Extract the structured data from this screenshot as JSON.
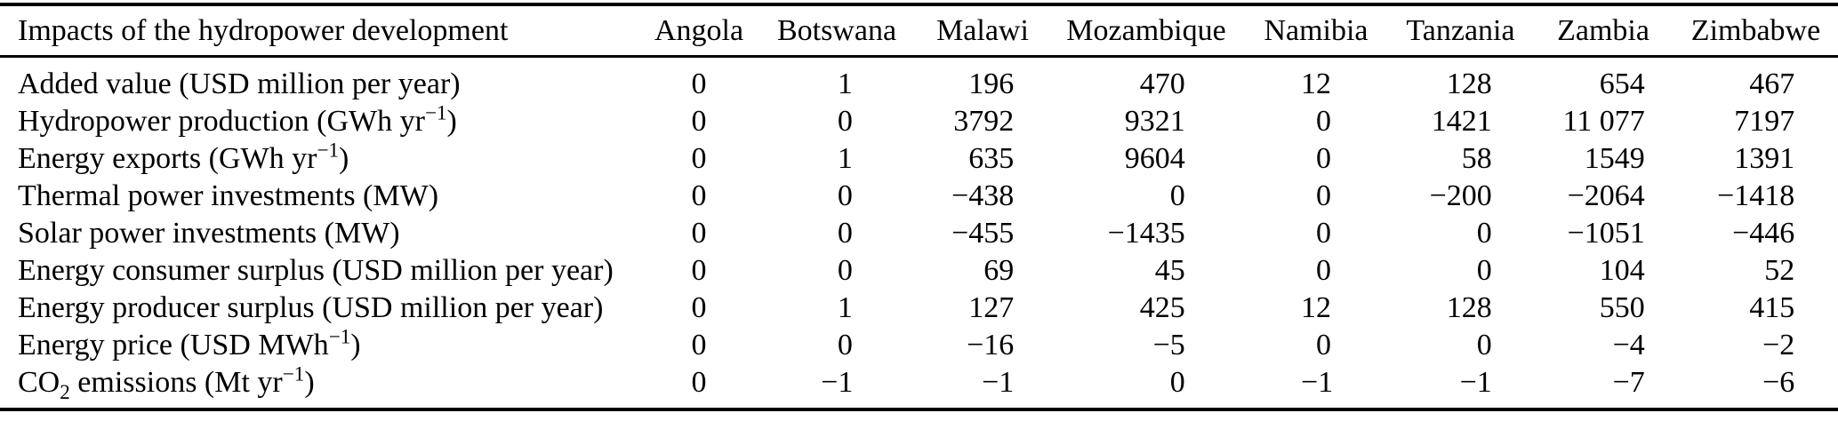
{
  "table": {
    "header": {
      "label": "Impacts of the hydropower development",
      "columns": [
        "Angola",
        "Botswana",
        "Malawi",
        "Mozambique",
        "Namibia",
        "Tanzania",
        "Zambia",
        "Zimbabwe"
      ]
    },
    "rows": [
      {
        "label": [
          {
            "t": "Added value (USD million per year)"
          }
        ],
        "values": [
          "0",
          "1",
          "196",
          "470",
          "12",
          "128",
          "654",
          "467"
        ]
      },
      {
        "label": [
          {
            "t": "Hydropower production (GWh yr"
          },
          {
            "sup": "−1"
          },
          {
            "t": ")"
          }
        ],
        "values": [
          "0",
          "0",
          "3792",
          "9321",
          "0",
          "1421",
          "11 077",
          "7197"
        ]
      },
      {
        "label": [
          {
            "t": "Energy exports (GWh yr"
          },
          {
            "sup": "−1"
          },
          {
            "t": ")"
          }
        ],
        "values": [
          "0",
          "1",
          "635",
          "9604",
          "0",
          "58",
          "1549",
          "1391"
        ]
      },
      {
        "label": [
          {
            "t": "Thermal power investments (MW)"
          }
        ],
        "values": [
          "0",
          "0",
          "−438",
          "0",
          "0",
          "−200",
          "−2064",
          "−1418"
        ]
      },
      {
        "label": [
          {
            "t": "Solar power investments (MW)"
          }
        ],
        "values": [
          "0",
          "0",
          "−455",
          "−1435",
          "0",
          "0",
          "−1051",
          "−446"
        ]
      },
      {
        "label": [
          {
            "t": "Energy consumer surplus (USD million per year)"
          }
        ],
        "values": [
          "0",
          "0",
          "69",
          "45",
          "0",
          "0",
          "104",
          "52"
        ]
      },
      {
        "label": [
          {
            "t": "Energy producer surplus (USD million per year)"
          }
        ],
        "values": [
          "0",
          "1",
          "127",
          "425",
          "12",
          "128",
          "550",
          "415"
        ]
      },
      {
        "label": [
          {
            "t": "Energy price (USD MWh"
          },
          {
            "sup": "−1"
          },
          {
            "t": ")"
          }
        ],
        "values": [
          "0",
          "0",
          "−16",
          "−5",
          "0",
          "0",
          "−4",
          "−2"
        ]
      },
      {
        "label": [
          {
            "t": "CO"
          },
          {
            "sub": "2"
          },
          {
            "t": " emissions (Mt yr"
          },
          {
            "sup": "−1"
          },
          {
            "t": ")"
          }
        ],
        "values": [
          "0",
          "−1",
          "−1",
          "0",
          "−1",
          "−1",
          "−7",
          "−6"
        ]
      }
    ]
  },
  "colors": {
    "text": "#000000",
    "background": "#ffffff",
    "rule": "#000000"
  }
}
